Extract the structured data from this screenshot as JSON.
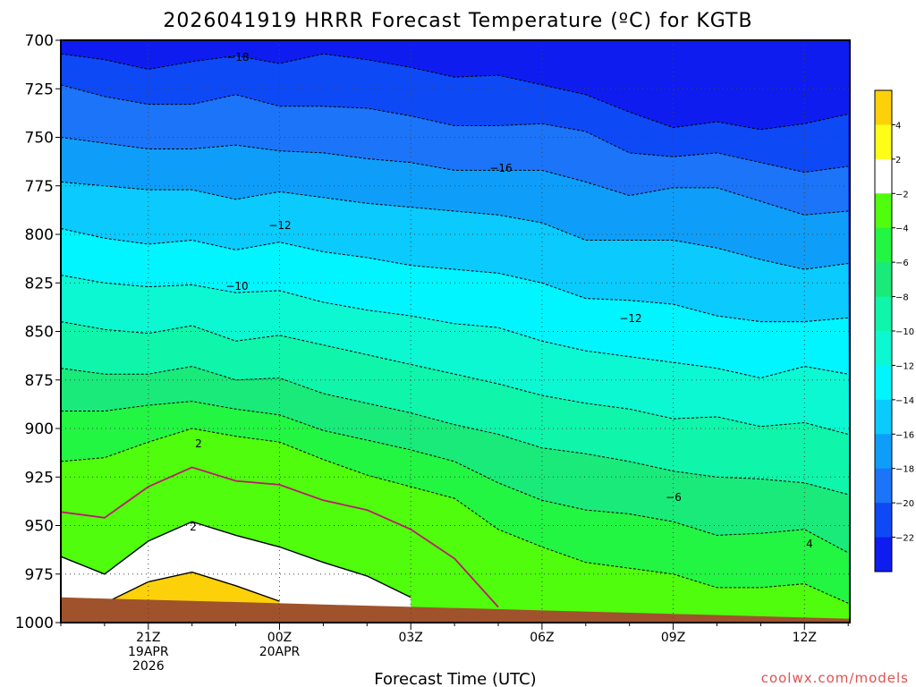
{
  "chart_data": {
    "type": "heatmap",
    "title": "2026041919 HRRR Forecast Temperature (ºC) for KGTB",
    "xlabel": "Forecast Time (UTC)",
    "ylabel": "",
    "y_scale": "pressure (inverted)",
    "ylim": [
      1000,
      700
    ],
    "y_ticks": [
      700,
      725,
      750,
      775,
      800,
      825,
      850,
      875,
      900,
      925,
      950,
      975,
      1000
    ],
    "x_ticks": [
      {
        "lines": [
          "21Z",
          "19APR",
          "2026"
        ]
      },
      {
        "lines": [
          "00Z",
          "20APR"
        ]
      },
      {
        "lines": [
          "03Z"
        ]
      },
      {
        "lines": [
          "06Z"
        ]
      },
      {
        "lines": [
          "09Z"
        ]
      },
      {
        "lines": [
          "12Z"
        ]
      }
    ],
    "x_hours": [
      "19Z",
      "20Z",
      "21Z",
      "22Z",
      "23Z",
      "00Z",
      "01Z",
      "02Z",
      "03Z",
      "04Z",
      "05Z",
      "06Z",
      "07Z",
      "08Z",
      "09Z",
      "10Z",
      "11Z",
      "12Z",
      "13Z"
    ],
    "contour_levels": [
      -22,
      -20,
      -18,
      -16,
      -14,
      -12,
      -10,
      -8,
      -6,
      -4,
      -2,
      2,
      4
    ],
    "colorbar": {
      "ticks": [
        "4",
        "2",
        "−2",
        "−4",
        "−6",
        "−8",
        "−10",
        "−12",
        "−14",
        "−16",
        "−18",
        "−20",
        "−22"
      ],
      "colors": [
        "#fcd10a",
        "#fdfd18",
        "#ffffff",
        "#4ffd0d",
        "#23f543",
        "#1aea7a",
        "#0ff5a9",
        "#0cf8d2",
        "#00f5ff",
        "#0acafe",
        "#0e9efa",
        "#1c74f8",
        "#0e49f6",
        "#0e1cf0"
      ]
    },
    "contour_labels": [
      "−18",
      "−16",
      "−12",
      "−10",
      "−12",
      "−6",
      "2",
      "2",
      "4"
    ],
    "isotherms": [
      {
        "level": -20,
        "p": [
          707,
          710,
          715,
          711,
          708,
          712,
          707,
          710,
          714,
          719,
          718,
          723,
          728,
          737,
          745,
          742,
          746,
          743,
          738
        ]
      },
      {
        "level": -18,
        "p": [
          723,
          729,
          733,
          733,
          728,
          734,
          734,
          735,
          739,
          744,
          744,
          743,
          747,
          758,
          760,
          758,
          763,
          768,
          765
        ]
      },
      {
        "level": -16,
        "p": [
          750,
          753,
          756,
          756,
          754,
          757,
          758,
          761,
          763,
          767,
          767,
          767,
          773,
          780,
          776,
          776,
          783,
          790,
          788
        ]
      },
      {
        "level": -14,
        "p": [
          773,
          775,
          777,
          777,
          782,
          778,
          781,
          784,
          786,
          788,
          790,
          794,
          803,
          803,
          803,
          807,
          813,
          818,
          815
        ]
      },
      {
        "level": -12,
        "p": [
          797,
          802,
          805,
          803,
          808,
          804,
          809,
          812,
          816,
          818,
          820,
          825,
          833,
          834,
          836,
          842,
          845,
          845,
          843
        ]
      },
      {
        "level": -10,
        "p": [
          821,
          825,
          827,
          826,
          830,
          829,
          835,
          839,
          842,
          846,
          848,
          855,
          860,
          863,
          866,
          869,
          874,
          868,
          872
        ]
      },
      {
        "level": -8,
        "p": [
          845,
          849,
          851,
          847,
          855,
          852,
          857,
          862,
          867,
          872,
          877,
          883,
          887,
          890,
          895,
          894,
          899,
          897,
          903
        ]
      },
      {
        "level": -6,
        "p": [
          869,
          872,
          872,
          868,
          875,
          874,
          882,
          887,
          892,
          898,
          903,
          910,
          913,
          917,
          922,
          925,
          926,
          928,
          934
        ]
      },
      {
        "level": -4,
        "p": [
          891,
          891,
          888,
          886,
          890,
          893,
          901,
          906,
          911,
          917,
          928,
          937,
          942,
          944,
          948,
          955,
          954,
          952,
          964
        ]
      },
      {
        "level": -2,
        "p": [
          917,
          915,
          907,
          900,
          904,
          907,
          916,
          924,
          930,
          936,
          952,
          961,
          969,
          972,
          975,
          982,
          982,
          980,
          990
        ]
      },
      {
        "level": 2,
        "p": [
          966,
          975,
          958,
          948,
          955,
          961,
          969,
          976,
          987
        ]
      },
      {
        "level": 4,
        "p": [
          990,
          990,
          979,
          974,
          981,
          989
        ]
      }
    ],
    "freezing_line": [
      943,
      946,
      930,
      920,
      927,
      929,
      937,
      942,
      952,
      967,
      992
    ],
    "ground_pressure": [
      987,
      988,
      989,
      990,
      991,
      992,
      993,
      994,
      995,
      996,
      997,
      998
    ]
  },
  "footer": {
    "credit": "coolwx.com/models"
  }
}
